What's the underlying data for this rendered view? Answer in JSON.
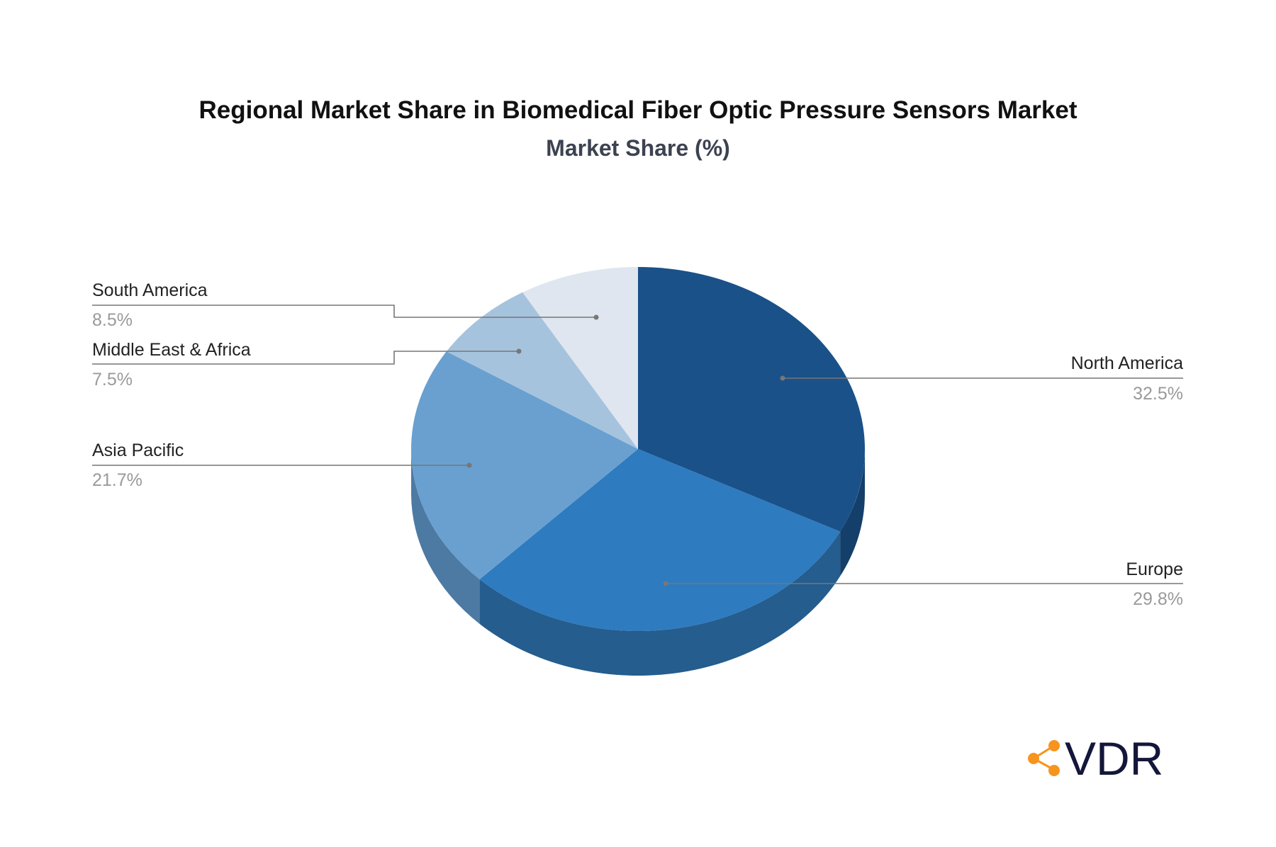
{
  "chart_data": {
    "type": "pie",
    "title": "Regional Market Share in Biomedical Fiber Optic Pressure Sensors Market",
    "subtitle": "Market Share (%)",
    "style": "3d",
    "slices": [
      {
        "name": "North America",
        "value": 32.5,
        "label": "32.5%",
        "color": "#1a5189",
        "side_color": "#143f6a"
      },
      {
        "name": "Europe",
        "value": 29.8,
        "label": "29.8%",
        "color": "#2e7bbf",
        "side_color": "#245d8e"
      },
      {
        "name": "Asia Pacific",
        "value": 21.7,
        "label": "21.7%",
        "color": "#69a0d0",
        "side_color": "#4d7aa3"
      },
      {
        "name": "Middle East & Africa",
        "value": 7.5,
        "label": "7.5%",
        "color": "#a6c3de",
        "side_color": "#8aa6c0"
      },
      {
        "name": "South America",
        "value": 8.5,
        "label": "8.5%",
        "color": "#dfe6ef",
        "side_color": "#c2cad4"
      }
    ]
  },
  "logo": {
    "text": "VDR",
    "accent": "#f7941d",
    "color": "#14163a"
  }
}
